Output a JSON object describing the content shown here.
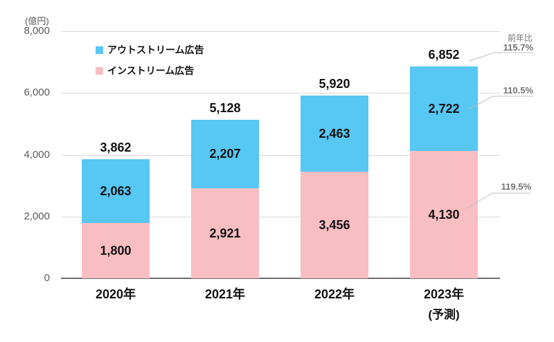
{
  "unit_label": "(億円)",
  "legend": {
    "items": [
      {
        "id": "outstream",
        "label": "アウトストリーム広告",
        "color": "#57c7f3"
      },
      {
        "id": "instream",
        "label": "インストリーム広告",
        "color": "#f9bec2"
      }
    ]
  },
  "yoy": {
    "header": "前年比",
    "annotations": [
      {
        "label": "115.7%",
        "target": "2023-total"
      },
      {
        "label": "110.5%",
        "target": "2023-outstream"
      },
      {
        "label": "119.5%",
        "target": "2023-instream"
      }
    ]
  },
  "chart_data": {
    "type": "bar",
    "stacked": true,
    "title": "",
    "ylabel": "(億円)",
    "ylim": [
      0,
      8000
    ],
    "yticks": [
      0,
      2000,
      4000,
      6000,
      8000
    ],
    "grid": true,
    "legend_position": "upper-left-inside",
    "categories": [
      {
        "label": "2020年"
      },
      {
        "label": "2021年"
      },
      {
        "label": "2022年"
      },
      {
        "label": "2023年",
        "sublabel": "(予測)"
      }
    ],
    "series": [
      {
        "name": "インストリーム広告",
        "color": "#f9bec2",
        "values": [
          1800,
          2921,
          3456,
          4130
        ]
      },
      {
        "name": "アウトストリーム広告",
        "color": "#57c7f3",
        "values": [
          2063,
          2207,
          2463,
          2722
        ]
      }
    ],
    "totals": [
      3862,
      5128,
      5920,
      6852
    ],
    "yoy_2023": {
      "total": "115.7%",
      "outstream": "110.5%",
      "instream": "119.5%"
    }
  }
}
